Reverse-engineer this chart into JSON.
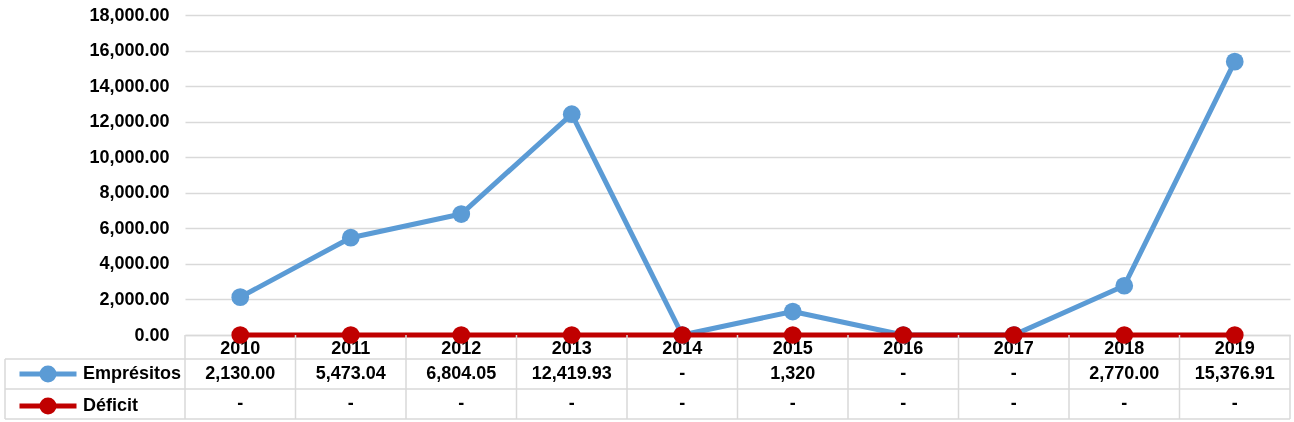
{
  "chart_data": {
    "type": "line",
    "categories": [
      "2010",
      "2011",
      "2012",
      "2013",
      "2014",
      "2015",
      "2016",
      "2017",
      "2018",
      "2019"
    ],
    "series": [
      {
        "name": "Emprésitos",
        "color": "#5b9bd5",
        "values": [
          2130.0,
          5473.04,
          6804.05,
          12419.93,
          0,
          1320,
          0,
          0,
          2770.0,
          15376.91
        ],
        "value_labels": [
          "2,130.00",
          "5,473.04",
          "6,804.05",
          "12,419.93",
          "-",
          "1,320",
          "-",
          "-",
          "2,770.00",
          "15,376.91"
        ]
      },
      {
        "name": "Déficit",
        "color": "#c00000",
        "values": [
          0,
          0,
          0,
          0,
          0,
          0,
          0,
          0,
          0,
          0
        ],
        "value_labels": [
          "-",
          "-",
          "-",
          "-",
          "-",
          "-",
          "-",
          "-",
          "-",
          "-"
        ]
      }
    ],
    "ylim": [
      0,
      18000
    ],
    "yticks": [
      {
        "value": 0,
        "label": "0.00"
      },
      {
        "value": 2000,
        "label": "2,000.00"
      },
      {
        "value": 4000,
        "label": "4,000.00"
      },
      {
        "value": 6000,
        "label": "6,000.00"
      },
      {
        "value": 8000,
        "label": "8,000.00"
      },
      {
        "value": 10000,
        "label": "10,000.00"
      },
      {
        "value": 12000,
        "label": "12,000.00"
      },
      {
        "value": 14000,
        "label": "14,000.00"
      },
      {
        "value": 16000,
        "label": "16,000.00"
      },
      {
        "value": 18000,
        "label": "18,000.00"
      }
    ],
    "grid": "y",
    "legend": "bottom left",
    "marker": "circle",
    "line_style": "solid"
  }
}
